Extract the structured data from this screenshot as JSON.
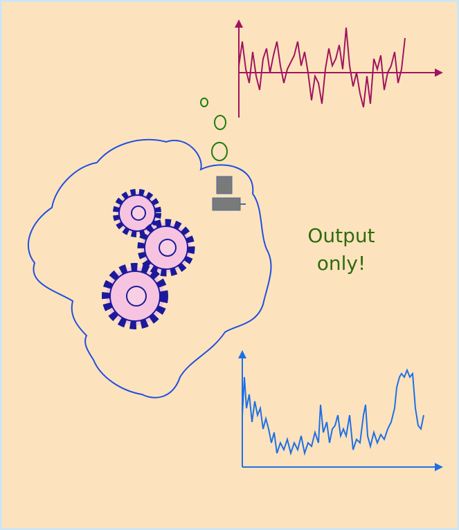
{
  "label": {
    "lines": [
      "Output",
      "only!"
    ]
  }
}
